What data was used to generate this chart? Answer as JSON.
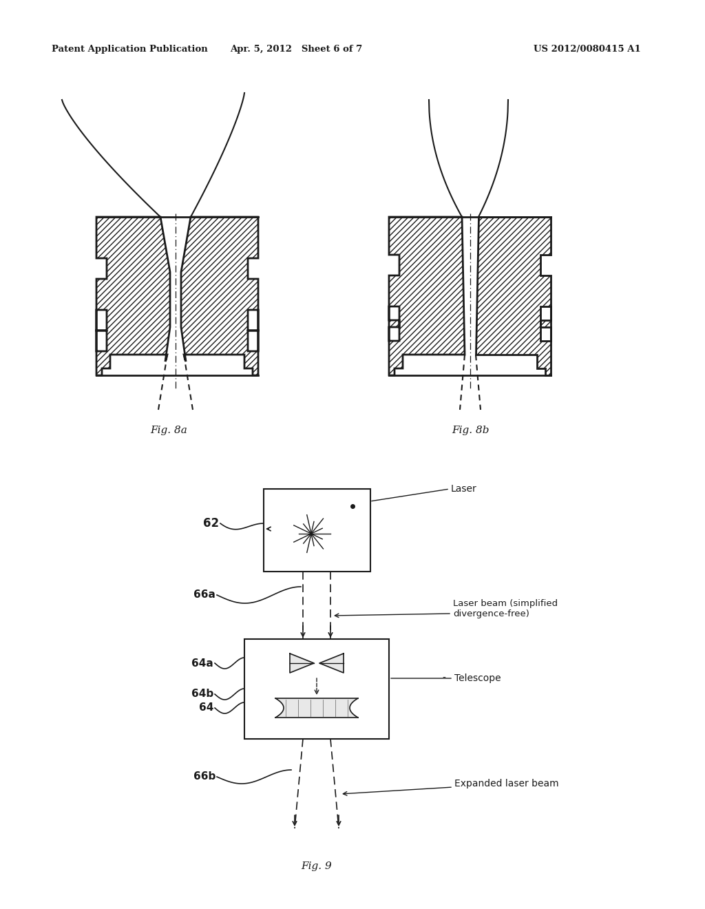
{
  "bg_color": "#ffffff",
  "header_left": "Patent Application Publication",
  "header_mid": "Apr. 5, 2012   Sheet 6 of 7",
  "header_right": "US 2012/0080415 A1",
  "fig8a_label": "Fig. 8a",
  "fig8b_label": "Fig. 8b",
  "fig9_label": "Fig. 9",
  "label_62": "62",
  "label_64": "64",
  "label_64a": "64a",
  "label_64b": "64b",
  "label_66a": "66a",
  "label_66b": "66b",
  "label_laser": "Laser",
  "label_laser_beam": "Laser beam (simplified\ndivergence-free)",
  "label_telescope": "Telescope",
  "label_expanded": "Expanded laser beam"
}
